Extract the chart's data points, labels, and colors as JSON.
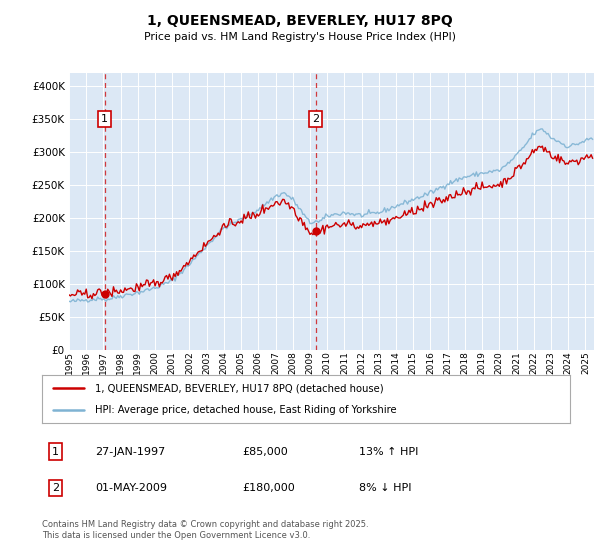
{
  "title": "1, QUEENSMEAD, BEVERLEY, HU17 8PQ",
  "subtitle": "Price paid vs. HM Land Registry's House Price Index (HPI)",
  "sale1_date": "27-JAN-1997",
  "sale1_price": 85000,
  "sale1_label": "13% ↑ HPI",
  "sale2_date": "01-MAY-2009",
  "sale2_price": 180000,
  "sale2_label": "8% ↓ HPI",
  "legend_line1": "1, QUEENSMEAD, BEVERLEY, HU17 8PQ (detached house)",
  "legend_line2": "HPI: Average price, detached house, East Riding of Yorkshire",
  "footer": "Contains HM Land Registry data © Crown copyright and database right 2025.\nThis data is licensed under the Open Government Licence v3.0.",
  "hpi_color": "#7fb3d3",
  "property_color": "#cc0000",
  "background_color": "#dce8f5",
  "sale1_x": 1997.07,
  "sale2_x": 2009.33,
  "ylim": [
    0,
    420000
  ],
  "yticks": [
    0,
    50000,
    100000,
    150000,
    200000,
    250000,
    300000,
    350000,
    400000
  ]
}
